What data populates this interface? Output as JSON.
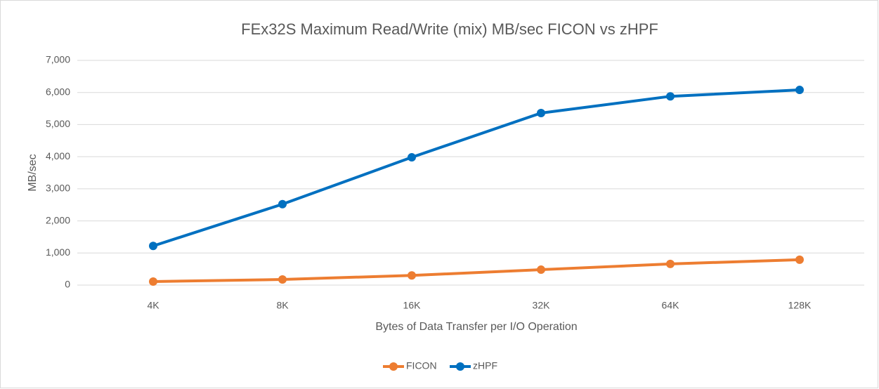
{
  "chart_data": {
    "type": "line",
    "title": "FEx32S Maximum Read/Write (mix) MB/sec FICON vs zHPF",
    "x_label": "Bytes of Data Transfer per I/O Operation",
    "y_label": "MB/sec",
    "categories": [
      "4K",
      "8K",
      "16K",
      "32K",
      "64K",
      "128K"
    ],
    "series": [
      {
        "name": "FICON",
        "color": "#ed7d31",
        "values": [
          110,
          175,
          300,
          480,
          660,
          790
        ]
      },
      {
        "name": "zHPF",
        "color": "#0070c0",
        "values": [
          1220,
          2520,
          3980,
          5360,
          5880,
          6080
        ]
      }
    ],
    "ylim": [
      0,
      7000
    ],
    "yticks": [
      0,
      {
        "value": 1000,
        "label": "1,000"
      },
      {
        "value": 2000,
        "label": "2,000"
      },
      {
        "value": 3000,
        "label": "3,000"
      },
      {
        "value": 4000,
        "label": "4,000"
      },
      {
        "value": 5000,
        "label": "5,000"
      },
      {
        "value": 6000,
        "label": "6,000"
      },
      {
        "value": 7000,
        "label": "7,000"
      }
    ],
    "grid": true,
    "legend": "bottom"
  }
}
